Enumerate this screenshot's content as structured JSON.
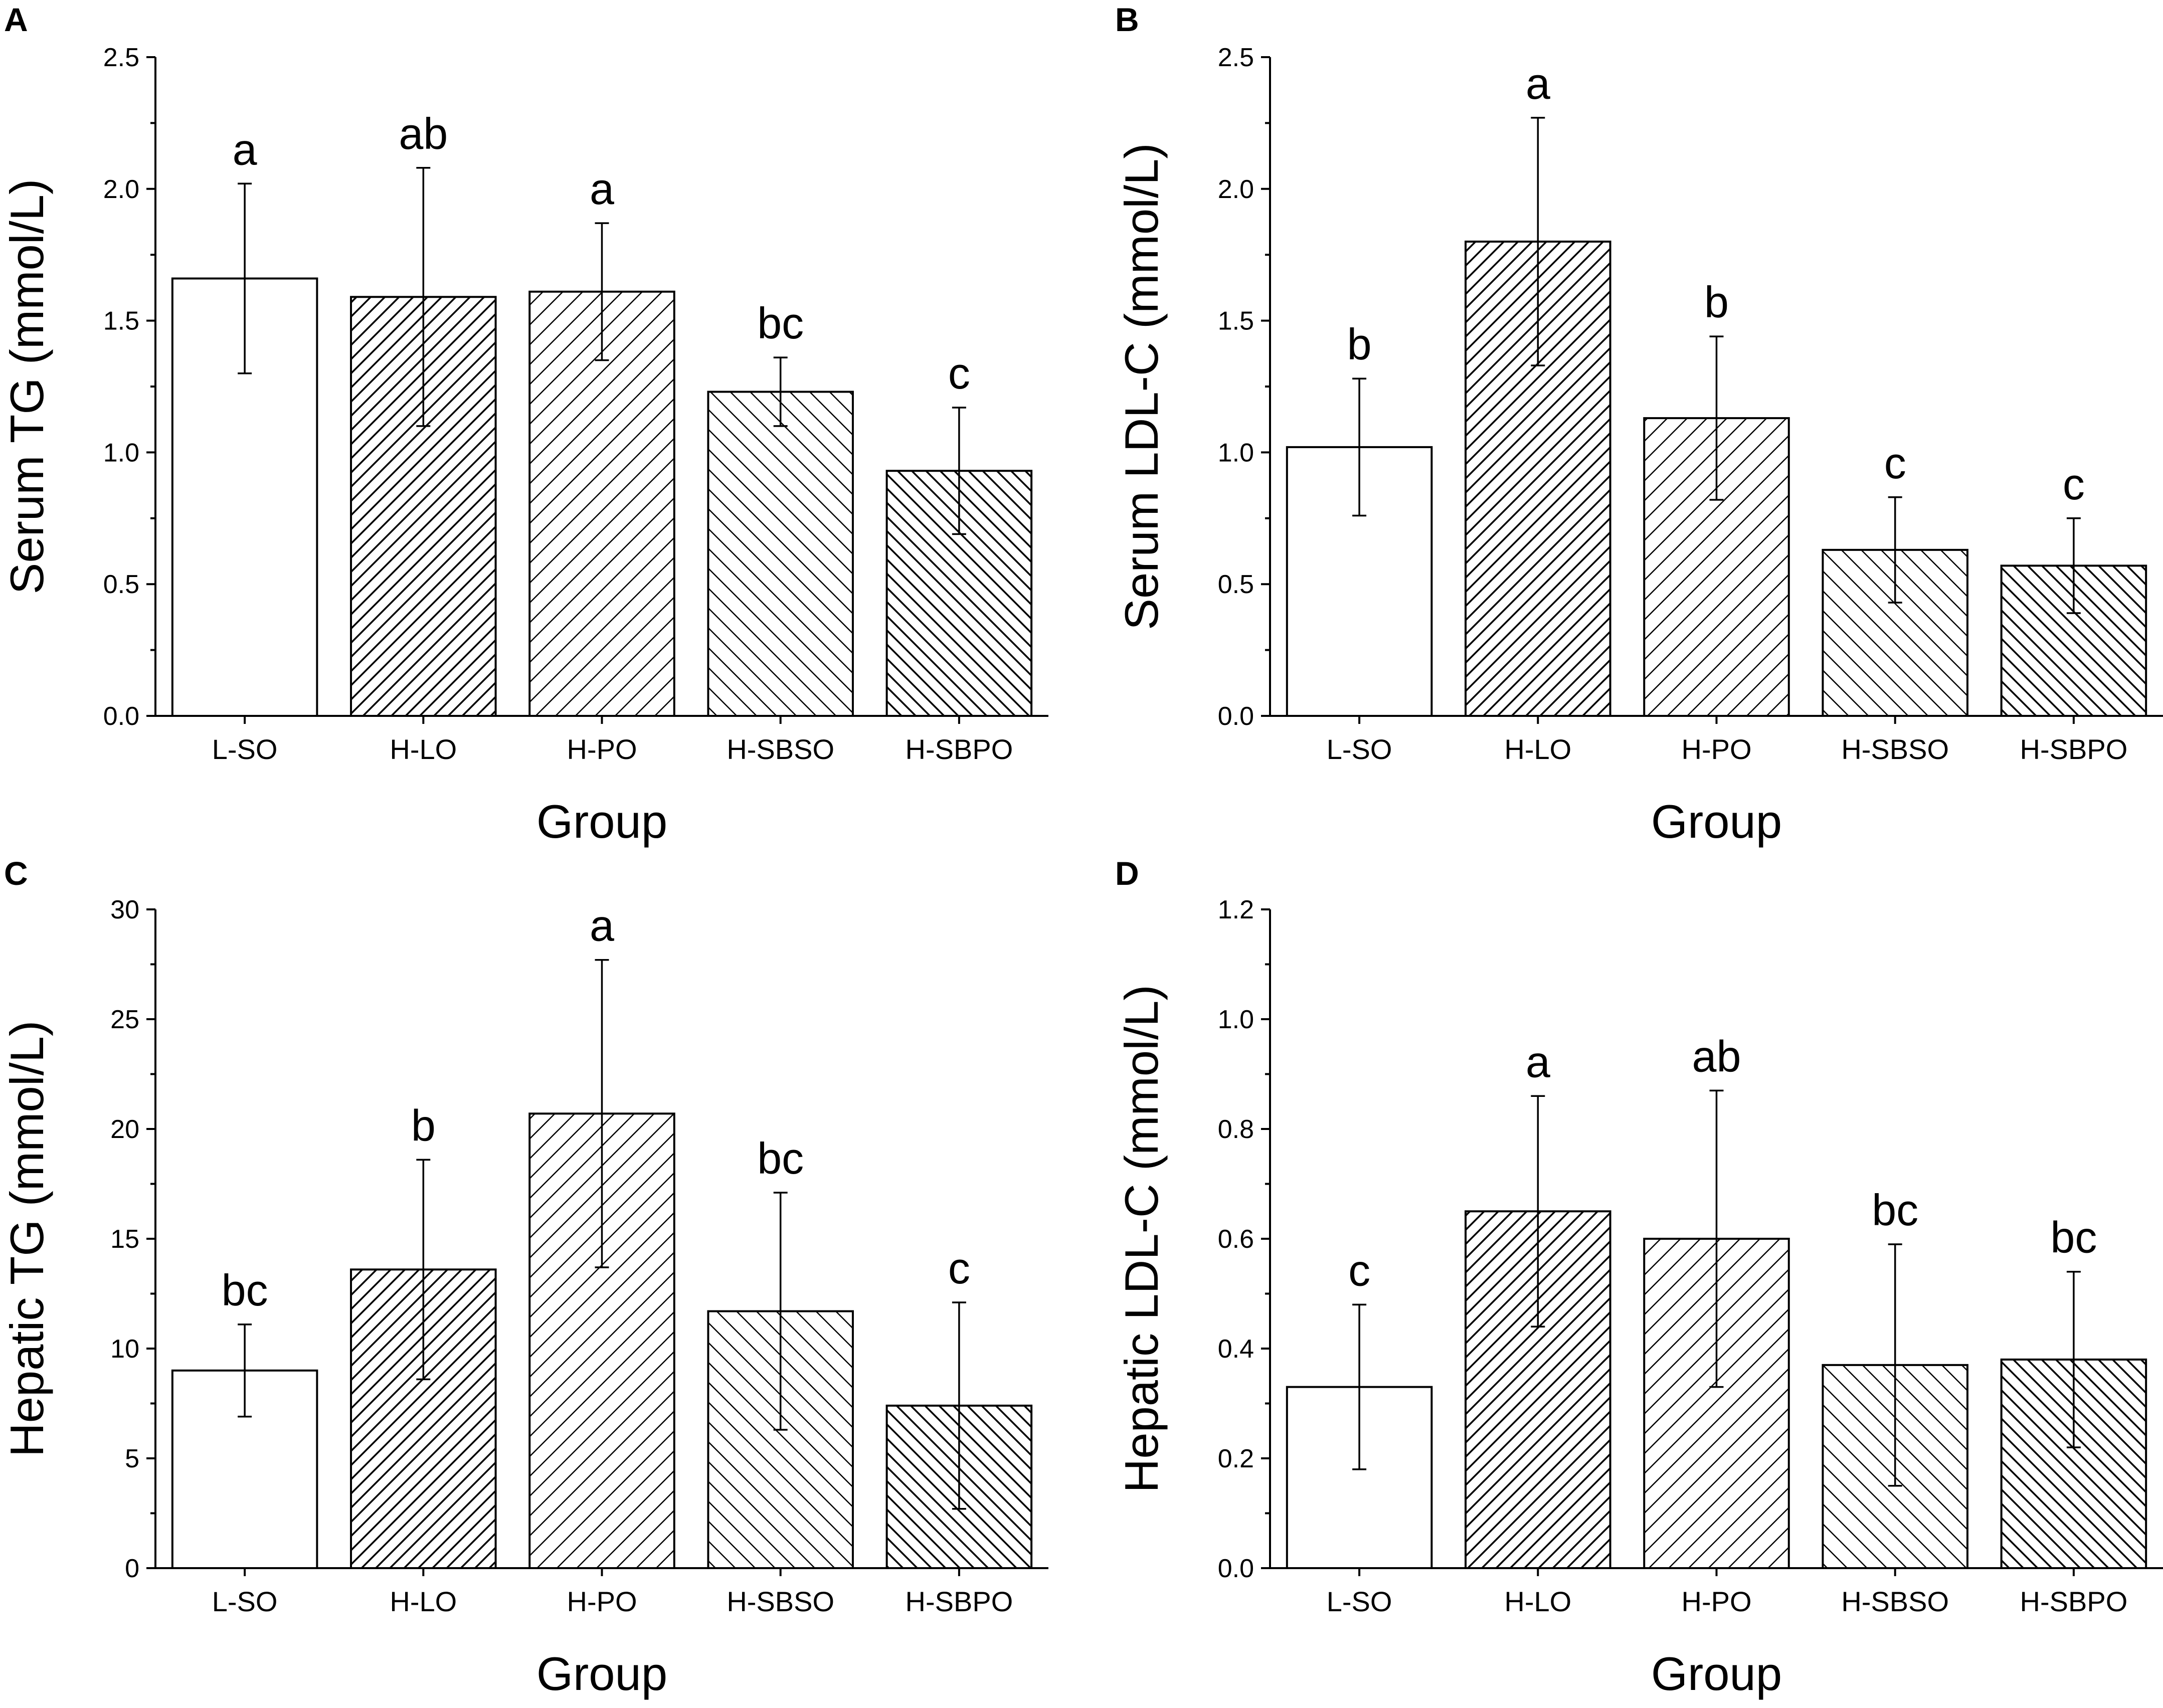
{
  "figure": {
    "panels": [
      "A",
      "B",
      "C",
      "D"
    ]
  },
  "chart_data": [
    {
      "panel": "A",
      "type": "bar",
      "title": "",
      "xlabel": "Group",
      "ylabel": "Serum TG (mmol/L)",
      "categories": [
        "L-SO",
        "H-LO",
        "H-PO",
        "H-SBSO",
        "H-SBPO"
      ],
      "values": [
        1.66,
        1.59,
        1.61,
        1.23,
        0.93
      ],
      "errors": [
        0.36,
        0.49,
        0.26,
        0.13,
        0.24
      ],
      "significance": [
        "a",
        "ab",
        "a",
        "bc",
        "c"
      ],
      "patterns": [
        "none",
        "dense-right",
        "light-right",
        "light-left",
        "dense-left"
      ],
      "ylim": [
        0,
        2.5
      ],
      "yticks": [
        "0.0",
        "0.5",
        "1.0",
        "1.5",
        "2.0",
        "2.5"
      ]
    },
    {
      "panel": "B",
      "type": "bar",
      "title": "",
      "xlabel": "Group",
      "ylabel": "Serum LDL-C (mmol/L)",
      "categories": [
        "L-SO",
        "H-LO",
        "H-PO",
        "H-SBSO",
        "H-SBPO"
      ],
      "values": [
        1.02,
        1.8,
        1.13,
        0.63,
        0.57
      ],
      "errors": [
        0.26,
        0.47,
        0.31,
        0.2,
        0.18
      ],
      "significance": [
        "b",
        "a",
        "b",
        "c",
        "c"
      ],
      "patterns": [
        "none",
        "dense-right",
        "light-right",
        "light-left",
        "dense-left"
      ],
      "ylim": [
        0,
        2.5
      ],
      "yticks": [
        "0.0",
        "0.5",
        "1.0",
        "1.5",
        "2.0",
        "2.5"
      ]
    },
    {
      "panel": "C",
      "type": "bar",
      "title": "",
      "xlabel": "Group",
      "ylabel": "Hepatic TG (mmol/L)",
      "categories": [
        "L-SO",
        "H-LO",
        "H-PO",
        "H-SBSO",
        "H-SBPO"
      ],
      "values": [
        9.0,
        13.6,
        20.7,
        11.7,
        7.4
      ],
      "errors": [
        2.1,
        5.0,
        7.0,
        5.4,
        4.7
      ],
      "significance": [
        "bc",
        "b",
        "a",
        "bc",
        "c"
      ],
      "patterns": [
        "none",
        "dense-right",
        "light-right",
        "light-left",
        "dense-left"
      ],
      "ylim": [
        0,
        30
      ],
      "yticks": [
        "0",
        "5",
        "10",
        "15",
        "20",
        "25",
        "30"
      ]
    },
    {
      "panel": "D",
      "type": "bar",
      "title": "",
      "xlabel": "Group",
      "ylabel": "Hepatic LDL-C (mmol/L)",
      "categories": [
        "L-SO",
        "H-LO",
        "H-PO",
        "H-SBSO",
        "H-SBPO"
      ],
      "values": [
        0.33,
        0.65,
        0.6,
        0.37,
        0.38
      ],
      "errors": [
        0.15,
        0.21,
        0.27,
        0.22,
        0.16
      ],
      "significance": [
        "c",
        "a",
        "ab",
        "bc",
        "bc"
      ],
      "patterns": [
        "none",
        "dense-right",
        "light-right",
        "light-left",
        "dense-left"
      ],
      "ylim": [
        0,
        1.2
      ],
      "yticks": [
        "0.0",
        "0.2",
        "0.4",
        "0.6",
        "0.8",
        "1.0",
        "1.2"
      ]
    }
  ]
}
